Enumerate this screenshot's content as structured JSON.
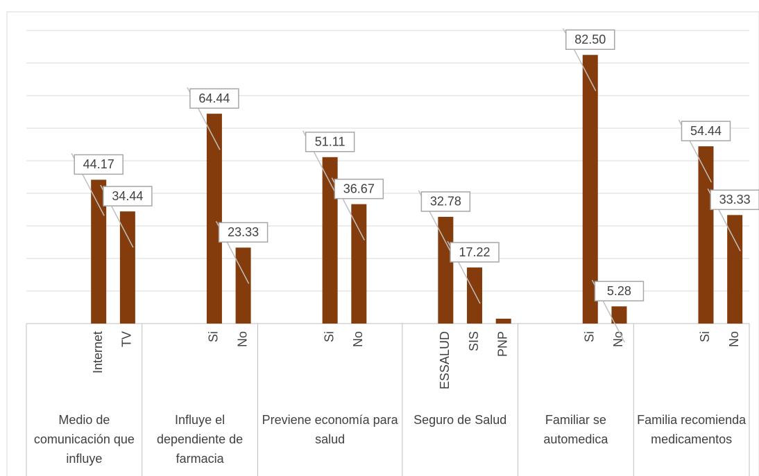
{
  "chart_data": {
    "type": "bar",
    "color": "#843c0c",
    "ylim": [
      0,
      90
    ],
    "yticks": [
      0,
      10,
      20,
      30,
      40,
      50,
      60,
      70,
      80,
      90
    ],
    "grid": true,
    "groups": [
      {
        "label": "Medio de comunicación que influye",
        "categories": [
          null,
          null,
          "Internet",
          "TV"
        ],
        "values": [
          null,
          null,
          44.17,
          34.44
        ],
        "value_labels": [
          null,
          null,
          "44.17",
          "34.44"
        ]
      },
      {
        "label": "Influye el dependiente de farmacia",
        "categories": [
          null,
          null,
          "Si",
          "No"
        ],
        "values": [
          null,
          null,
          64.44,
          23.33
        ],
        "value_labels": [
          null,
          null,
          "64.44",
          "23.33"
        ]
      },
      {
        "label": "Previene economía para salud",
        "categories": [
          null,
          null,
          "Si",
          "No",
          null
        ],
        "values": [
          null,
          null,
          51.11,
          36.67,
          null
        ],
        "value_labels": [
          null,
          null,
          "51.11",
          "36.67",
          null
        ]
      },
      {
        "label": "Seguro de Salud",
        "categories": [
          null,
          "ESSALUD",
          "SIS",
          "PNP"
        ],
        "values": [
          null,
          32.78,
          17.22,
          1.5
        ],
        "value_labels": [
          null,
          "32.78",
          "17.22",
          null
        ]
      },
      {
        "label": "Familiar se automedica",
        "categories": [
          null,
          null,
          "Si",
          "No"
        ],
        "values": [
          null,
          null,
          82.5,
          5.28
        ],
        "value_labels": [
          null,
          null,
          "82.50",
          "5.28"
        ]
      },
      {
        "label": "Familia recomienda medicamentos",
        "categories": [
          null,
          null,
          "Si",
          "No"
        ],
        "values": [
          null,
          null,
          54.44,
          33.33
        ],
        "value_labels": [
          null,
          null,
          "54.44",
          "33.33"
        ]
      }
    ]
  }
}
